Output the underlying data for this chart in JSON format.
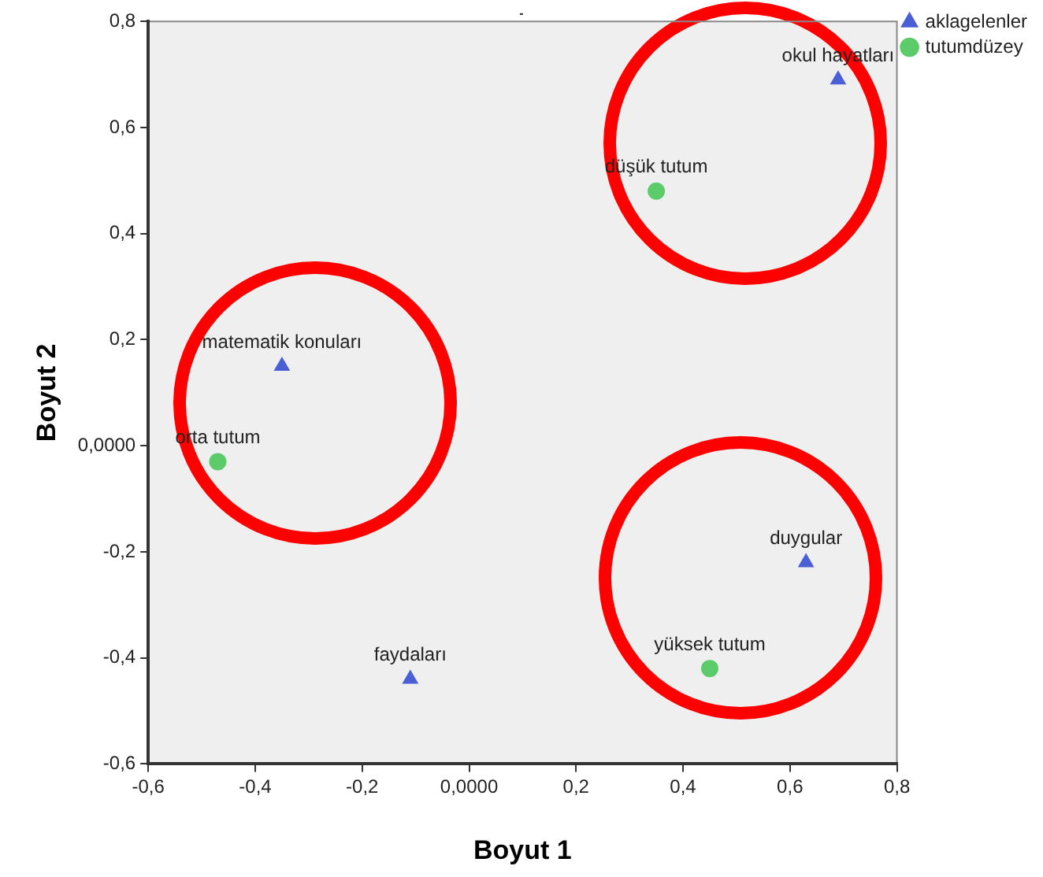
{
  "chart_data": {
    "type": "scatter",
    "title": "-",
    "xlabel": "Boyut 1",
    "ylabel": "Boyut 2",
    "series": [
      {
        "name": "aklagelenler",
        "color": "#4a5fd6",
        "marker": "triangle",
        "x": [
          -0.35,
          -0.11,
          0.69,
          0.63
        ],
        "values": [
          0.15,
          -0.44,
          0.69,
          -0.22
        ]
      },
      {
        "name": "tutumdüzey",
        "color": "#5ccc6a",
        "marker": "circle",
        "x": [
          -0.47,
          0.35,
          0.45
        ],
        "values": [
          -0.03,
          0.48,
          -0.42
        ]
      }
    ],
    "annotations": [
      {
        "text": "matematik konuları",
        "x": -0.35,
        "y": 0.15
      },
      {
        "text": "faydaları",
        "x": -0.11,
        "y": -0.44
      },
      {
        "text": "okul hayatları",
        "x": 0.69,
        "y": 0.69
      },
      {
        "text": "duygular",
        "x": 0.63,
        "y": -0.22
      },
      {
        "text": "orta tutum",
        "x": -0.47,
        "y": -0.03
      },
      {
        "text": "düşük tutum",
        "x": 0.35,
        "y": 0.48
      },
      {
        "text": "yüksek tutum",
        "x": 0.45,
        "y": -0.42
      }
    ],
    "xlim": [
      -0.6,
      0.8
    ],
    "ylim": [
      -0.6,
      0.8
    ],
    "xticks": [
      {
        "value": -0.6,
        "label": "-0,6"
      },
      {
        "value": -0.4,
        "label": "-0,4"
      },
      {
        "value": -0.2,
        "label": "-0,2"
      },
      {
        "value": 0,
        "label": "0,0000"
      },
      {
        "value": 0.2,
        "label": "0,2"
      },
      {
        "value": 0.4,
        "label": "0,4"
      },
      {
        "value": 0.6,
        "label": "0,6"
      },
      {
        "value": 0.8,
        "label": "0,8"
      }
    ],
    "yticks": [
      {
        "value": -0.6,
        "label": "-0,6"
      },
      {
        "value": -0.4,
        "label": "-0,4"
      },
      {
        "value": -0.2,
        "label": "-0,2"
      },
      {
        "value": 0,
        "label": "0,0000"
      },
      {
        "value": 0.2,
        "label": "0,2"
      },
      {
        "value": 0.4,
        "label": "0,4"
      },
      {
        "value": 0.6,
        "label": "0,6"
      },
      {
        "value": 0.8,
        "label": "0,8"
      }
    ],
    "grid": false,
    "legend": "top right"
  }
}
